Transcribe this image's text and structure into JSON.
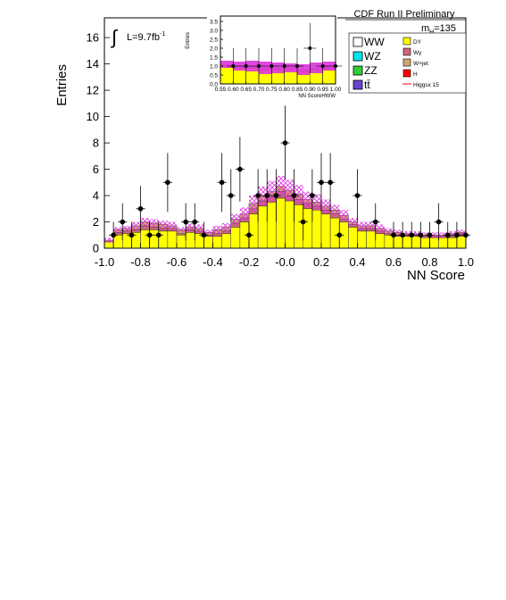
{
  "header": {
    "title": "CDF Run II Preliminary",
    "mass_label": "m",
    "mass_sub": "H",
    "mass_value": "=135",
    "lumi_symbol": "∫",
    "lumi_text": "L=9.7fb",
    "lumi_sup": "-1"
  },
  "legend": {
    "left": [
      {
        "label": "WW",
        "color": "#ffffff"
      },
      {
        "label": "WZ",
        "color": "#00e5ee"
      },
      {
        "label": "ZZ",
        "color": "#33cc33"
      },
      {
        "label": "tt̄",
        "color": "#6644cc"
      }
    ],
    "right": [
      {
        "label": "DY",
        "color": "#ffff00"
      },
      {
        "label": "Wγ",
        "color": "#cc6677"
      },
      {
        "label": "W+jet",
        "color": "#d4a574"
      },
      {
        "label": "H",
        "color": "#ff0000"
      },
      {
        "label": "Higgsx 15",
        "color": "#ff0000",
        "style": "line"
      }
    ]
  },
  "colors": {
    "dy": "#ffff00",
    "wgamma": "#cc6677",
    "wjet": "#d4a574",
    "uncert": "#dd33dd",
    "data": "#000000"
  },
  "chart_data": [
    {
      "type": "bar",
      "xlabel": "NN Score",
      "ylabel": "Entries",
      "xlim": [
        -1.0,
        1.0
      ],
      "ylim": [
        0,
        17.5
      ],
      "xticks": [
        "-1.0",
        "-0.8",
        "-0.6",
        "-0.4",
        "-0.2",
        "-0.0",
        "0.2",
        "0.4",
        "0.6",
        "0.8",
        "1.0"
      ],
      "yticks": [
        "0",
        "2",
        "4",
        "6",
        "8",
        "10",
        "12",
        "14",
        "16"
      ],
      "bin_width": 0.05,
      "bin_centers": [
        -0.975,
        -0.925,
        -0.875,
        -0.825,
        -0.775,
        -0.725,
        -0.675,
        -0.625,
        -0.575,
        -0.525,
        -0.475,
        -0.425,
        -0.375,
        -0.325,
        -0.275,
        -0.225,
        -0.175,
        -0.125,
        -0.075,
        -0.025,
        0.025,
        0.075,
        0.125,
        0.175,
        0.225,
        0.275,
        0.325,
        0.375,
        0.425,
        0.475,
        0.525,
        0.575,
        0.625,
        0.675,
        0.725,
        0.775,
        0.825,
        0.875,
        0.925,
        0.975
      ],
      "series": [
        {
          "name": "DY",
          "values": [
            0.5,
            1.0,
            1.1,
            1.2,
            1.4,
            1.4,
            1.3,
            1.3,
            1.0,
            1.2,
            1.1,
            0.9,
            0.9,
            1.1,
            1.6,
            2.0,
            2.6,
            3.2,
            3.5,
            3.8,
            3.6,
            3.3,
            3.0,
            2.9,
            2.6,
            2.3,
            2.0,
            1.6,
            1.3,
            1.3,
            1.1,
            1.0,
            0.9,
            0.9,
            0.9,
            0.8,
            0.8,
            0.8,
            0.8,
            0.9
          ]
        },
        {
          "name": "Wγ",
          "values": [
            0.0,
            0.2,
            0.2,
            0.2,
            0.3,
            0.2,
            0.2,
            0.2,
            0.1,
            0.2,
            0.2,
            0.1,
            0.2,
            0.2,
            0.3,
            0.3,
            0.4,
            0.4,
            0.4,
            0.5,
            0.4,
            0.4,
            0.4,
            0.3,
            0.3,
            0.3,
            0.2,
            0.2,
            0.2,
            0.2,
            0.2,
            0.1,
            0.1,
            0.1,
            0.1,
            0.1,
            0.1,
            0.1,
            0.1,
            0.2
          ]
        },
        {
          "name": "W+jet",
          "values": [
            0.1,
            0.2,
            0.2,
            0.3,
            0.3,
            0.3,
            0.3,
            0.2,
            0.3,
            0.2,
            0.2,
            0.2,
            0.3,
            0.3,
            0.3,
            0.3,
            0.4,
            0.4,
            0.4,
            0.4,
            0.4,
            0.4,
            0.3,
            0.3,
            0.3,
            0.3,
            0.3,
            0.2,
            0.2,
            0.2,
            0.2,
            0.2,
            0.2,
            0.1,
            0.1,
            0.1,
            0.1,
            0.1,
            0.2,
            0.1
          ]
        }
      ],
      "uncertainty": [
        0.2,
        0.2,
        0.2,
        0.3,
        0.3,
        0.3,
        0.3,
        0.3,
        0.2,
        0.3,
        0.3,
        0.2,
        0.3,
        0.3,
        0.4,
        0.5,
        0.6,
        0.7,
        0.8,
        0.8,
        0.8,
        0.7,
        0.6,
        0.6,
        0.5,
        0.4,
        0.4,
        0.3,
        0.3,
        0.3,
        0.3,
        0.2,
        0.2,
        0.2,
        0.2,
        0.2,
        0.2,
        0.2,
        0.2,
        0.2
      ],
      "data_points": {
        "x": [
          -0.95,
          -0.9,
          -0.85,
          -0.8,
          -0.75,
          -0.7,
          -0.65,
          -0.55,
          -0.5,
          -0.45,
          -0.35,
          -0.3,
          -0.25,
          -0.2,
          -0.15,
          -0.1,
          -0.05,
          0.0,
          0.05,
          0.1,
          0.15,
          0.2,
          0.25,
          0.3,
          0.4,
          0.5,
          0.6,
          0.65,
          0.7,
          0.75,
          0.8,
          0.85,
          0.9,
          0.95,
          1.0
        ],
        "y": [
          1,
          2,
          1,
          3,
          1,
          1,
          5,
          2,
          2,
          1,
          5,
          4,
          6,
          1,
          4,
          4,
          4,
          8,
          4,
          2,
          4,
          5,
          5,
          1,
          4,
          2,
          1,
          1,
          1,
          1,
          1,
          2,
          1,
          1,
          1
        ]
      }
    },
    {
      "type": "bar",
      "xlabel": "NN ScoreHWW",
      "ylabel": "Entries",
      "xlim": [
        0.55,
        1.0
      ],
      "ylim": [
        0,
        3.8
      ],
      "xticks": [
        "0.55",
        "0.60",
        "0.65",
        "0.70",
        "0.75",
        "0.80",
        "0.85",
        "0.90",
        "0.95",
        "1.00"
      ],
      "yticks": [
        "0.0",
        "0.5",
        "1.0",
        "1.5",
        "2.0",
        "2.5",
        "3.0",
        "3.5"
      ],
      "bin_width": 0.05,
      "bin_centers": [
        0.575,
        0.625,
        0.675,
        0.725,
        0.775,
        0.825,
        0.875,
        0.925,
        0.975
      ],
      "series": [
        {
          "name": "DY",
          "values": [
            1.0,
            0.9,
            0.9,
            0.8,
            0.8,
            0.8,
            0.7,
            0.8,
            0.8
          ]
        },
        {
          "name": "W+jet",
          "values": [
            0.1,
            0.1,
            0.1,
            0.1,
            0.1,
            0.1,
            0.1,
            0.1,
            0.2
          ]
        }
      ],
      "uncertainty": [
        0.2,
        0.25,
        0.3,
        0.35,
        0.3,
        0.25,
        0.3,
        0.3,
        0.25
      ],
      "data_points": {
        "x": [
          0.6,
          0.65,
          0.7,
          0.75,
          0.8,
          0.85,
          0.9,
          0.95,
          1.0
        ],
        "y": [
          1,
          1,
          1,
          1,
          1,
          1,
          2,
          1,
          1
        ]
      }
    }
  ]
}
